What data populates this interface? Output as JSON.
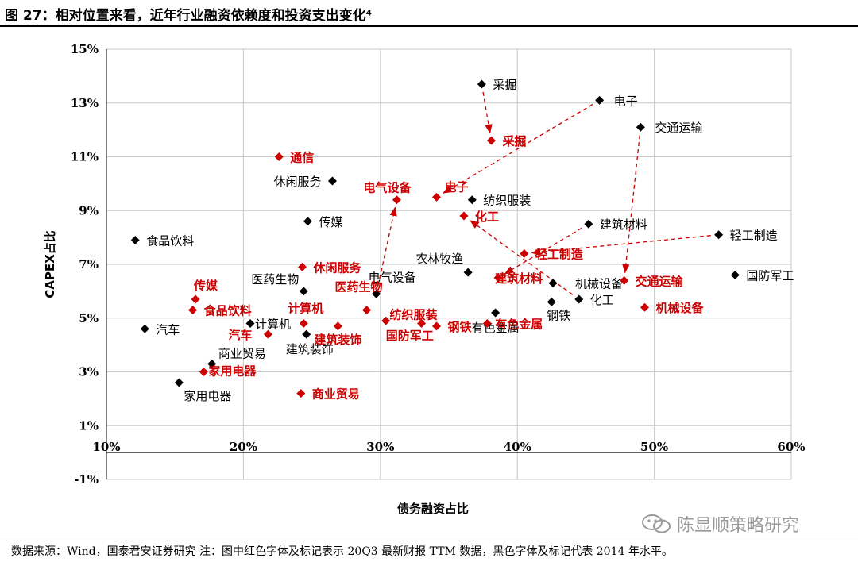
{
  "page": {
    "title": "图 27：相对位置来看，近年行业融资依赖度和投资支出变化⁴",
    "footer": "数据来源：Wind，国泰君安证券研究 注：图中红色字体及标记表示 20Q3 最新财报 TTM 数据，黑色字体及标记代表 2014 年水平。",
    "watermark": "陈显顺策略研究"
  },
  "colors": {
    "series_2014": "#000000",
    "series_20q3": "#cc0000"
  },
  "chart_data": {
    "type": "scatter",
    "xlabel": "债务融资占比",
    "ylabel": "CAPEX占比",
    "xlim": [
      0.1,
      0.6
    ],
    "ylim": [
      -0.01,
      0.15
    ],
    "xticks": [
      "10%",
      "20%",
      "30%",
      "40%",
      "50%",
      "60%"
    ],
    "yticks": [
      "-1%",
      "1%",
      "3%",
      "5%",
      "7%",
      "9%",
      "11%",
      "13%",
      "15%"
    ],
    "grid": true,
    "series": [
      {
        "key": "2014",
        "points": [
          {
            "name": "采掘",
            "x": 0.374,
            "y": 0.137
          },
          {
            "name": "电子",
            "x": 0.46,
            "y": 0.131
          },
          {
            "name": "交通运输",
            "x": 0.49,
            "y": 0.121
          },
          {
            "name": "休闲服务",
            "x": 0.265,
            "y": 0.101
          },
          {
            "name": "纺织服装",
            "x": 0.367,
            "y": 0.094
          },
          {
            "name": "传媒",
            "x": 0.247,
            "y": 0.086
          },
          {
            "name": "建筑材料",
            "x": 0.452,
            "y": 0.085
          },
          {
            "name": "食品饮料",
            "x": 0.121,
            "y": 0.079
          },
          {
            "name": "轻工制造",
            "x": 0.547,
            "y": 0.081
          },
          {
            "name": "农林牧渔",
            "x": 0.364,
            "y": 0.067
          },
          {
            "name": "机械设备",
            "x": 0.426,
            "y": 0.063
          },
          {
            "name": "国防军工",
            "x": 0.559,
            "y": 0.066
          },
          {
            "name": "医药生物",
            "x": 0.244,
            "y": 0.06
          },
          {
            "name": "电气设备",
            "x": 0.297,
            "y": 0.059
          },
          {
            "name": "化工",
            "x": 0.445,
            "y": 0.057
          },
          {
            "name": "钢铁",
            "x": 0.425,
            "y": 0.056
          },
          {
            "name": "有色金属",
            "x": 0.384,
            "y": 0.052
          },
          {
            "name": "汽车",
            "x": 0.128,
            "y": 0.046
          },
          {
            "name": "计算机",
            "x": 0.205,
            "y": 0.048
          },
          {
            "name": "建筑装饰",
            "x": 0.246,
            "y": 0.044
          },
          {
            "name": "商业贸易",
            "x": 0.177,
            "y": 0.033
          },
          {
            "name": "家用电器",
            "x": 0.153,
            "y": 0.026
          }
        ]
      },
      {
        "key": "20Q3",
        "points": [
          {
            "name": "通信",
            "x": 0.226,
            "y": 0.11
          },
          {
            "name": "采掘",
            "x": 0.381,
            "y": 0.116
          },
          {
            "name": "电气设备",
            "x": 0.312,
            "y": 0.094
          },
          {
            "name": "电子",
            "x": 0.341,
            "y": 0.095
          },
          {
            "name": "化工",
            "x": 0.361,
            "y": 0.088
          },
          {
            "name": "轻工制造",
            "x": 0.405,
            "y": 0.074
          },
          {
            "name": "休闲服务",
            "x": 0.243,
            "y": 0.069
          },
          {
            "name": "建筑材料",
            "x": 0.386,
            "y": 0.065
          },
          {
            "name": "交通运输",
            "x": 0.478,
            "y": 0.064
          },
          {
            "name": "传媒",
            "x": 0.165,
            "y": 0.057
          },
          {
            "name": "食品饮料",
            "x": 0.163,
            "y": 0.053
          },
          {
            "name": "医药生物",
            "x": 0.29,
            "y": 0.053
          },
          {
            "name": "机械设备",
            "x": 0.493,
            "y": 0.054
          },
          {
            "name": "纺织服装",
            "x": 0.33,
            "y": 0.048
          },
          {
            "name": "国防军工",
            "x": 0.304,
            "y": 0.049
          },
          {
            "name": "计算机",
            "x": 0.244,
            "y": 0.048
          },
          {
            "name": "钢铁",
            "x": 0.341,
            "y": 0.047
          },
          {
            "name": "有色金属",
            "x": 0.378,
            "y": 0.048
          },
          {
            "name": "汽车",
            "x": 0.218,
            "y": 0.044
          },
          {
            "name": "建筑装饰",
            "x": 0.269,
            "y": 0.047
          },
          {
            "name": "家用电器",
            "x": 0.171,
            "y": 0.03
          },
          {
            "name": "商业贸易",
            "x": 0.242,
            "y": 0.022
          }
        ]
      }
    ],
    "arrows": [
      {
        "from": "采掘"
      },
      {
        "from": "电子"
      },
      {
        "from": "交通运输"
      },
      {
        "from": "电气设备"
      },
      {
        "from": "轻工制造"
      },
      {
        "from": "化工"
      },
      {
        "from": "建筑材料"
      }
    ]
  }
}
